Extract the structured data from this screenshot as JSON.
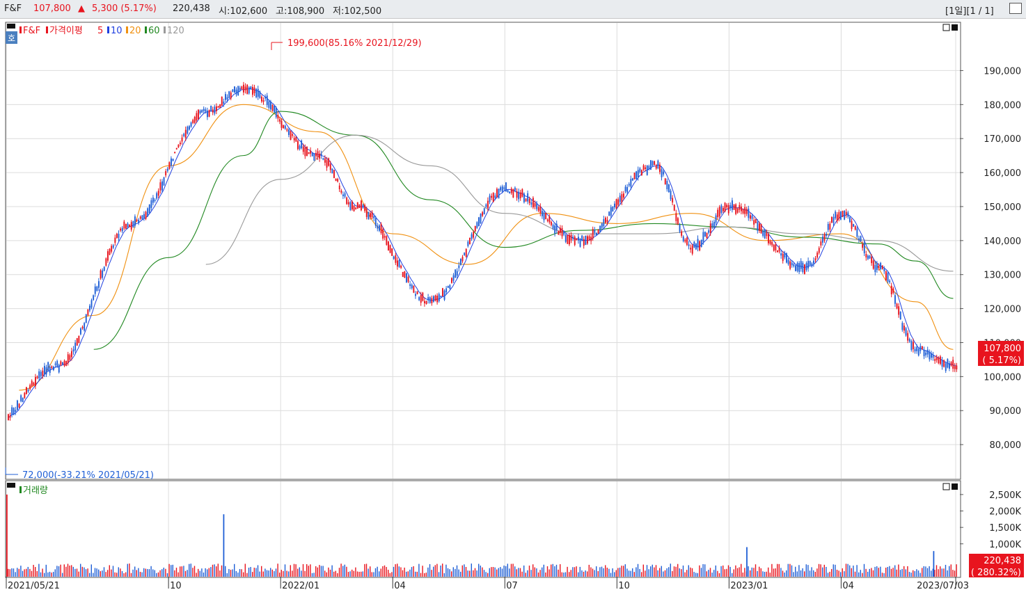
{
  "header": {
    "symbol": "F&F",
    "price": "107,800",
    "arrow": "▲",
    "change": "5,300 (5.17%)",
    "volume": "220,438",
    "open": "시:102,600",
    "high": "고:108,900",
    "low": "저:102,500",
    "period": "[1일][1 / 1]"
  },
  "legend": {
    "symbol": "F&F",
    "ma_title": "가격이평",
    "ma": [
      {
        "label": "5",
        "color": "#e8141e"
      },
      {
        "label": "10",
        "color": "#2040e0"
      },
      {
        "label": "20",
        "color": "#f09010"
      },
      {
        "label": "60",
        "color": "#208820"
      },
      {
        "label": "120",
        "color": "#999999"
      }
    ],
    "badge": "호",
    "volume_title": "거래량"
  },
  "annotations": {
    "high": "199,600(85.16% 2021/12/29)",
    "low": "72,000(-33.21% 2021/05/21)"
  },
  "price_tag": {
    "price": "107,800",
    "pct": "( 5.17%)"
  },
  "volume_tag": {
    "value": "220,438",
    "pct": "( 280.32%)"
  },
  "colors": {
    "up": "#e8141e",
    "down": "#1f5fd6",
    "ma5": "#e8141e",
    "ma10": "#2040e0",
    "ma20": "#f09010",
    "ma60": "#208820",
    "ma120": "#999999"
  },
  "chart_data": [
    {
      "type": "line",
      "title": "F&F",
      "price_axis_ticks": [
        "190,000",
        "180,000",
        "170,000",
        "160,000",
        "150,000",
        "140,000",
        "130,000",
        "120,000",
        "110,000",
        "100,000",
        "90,000",
        "80,000"
      ],
      "ylim": [
        70000,
        204000
      ],
      "x_ticks": [
        "2021/05/21",
        "10",
        "2022/01",
        "04",
        "07",
        "10",
        "2023/01",
        "04",
        "2023/07/03"
      ],
      "series": [
        {
          "name": "5",
          "x": [
            "2021/05",
            "2021/07",
            "2021/09",
            "2021/11",
            "2021/12",
            "2022/02",
            "2022/03",
            "2022/05",
            "2022/07",
            "2022/09",
            "2022/11",
            "2022/12",
            "2023/01",
            "2023/03",
            "2023/04",
            "2023/05",
            "2023/06",
            "2023/07"
          ],
          "values": [
            82000,
            103000,
            145000,
            178000,
            185000,
            165000,
            150000,
            122000,
            155000,
            140000,
            162000,
            138000,
            150000,
            132000,
            148000,
            132000,
            108000,
            103000
          ]
        },
        {
          "name": "20",
          "x": [
            "2021/06",
            "2021/08",
            "2021/10",
            "2021/12",
            "2022/02",
            "2022/04",
            "2022/06",
            "2022/08",
            "2022/10",
            "2022/12",
            "2023/02",
            "2023/04",
            "2023/06",
            "2023/07"
          ],
          "values": [
            96000,
            118000,
            162000,
            180000,
            172000,
            142000,
            133000,
            148000,
            145000,
            148000,
            140000,
            142000,
            122000,
            108000
          ]
        },
        {
          "name": "60",
          "x": [
            "2021/08",
            "2021/10",
            "2021/12",
            "2022/01",
            "2022/03",
            "2022/05",
            "2022/07",
            "2022/09",
            "2022/11",
            "2023/01",
            "2023/03",
            "2023/05",
            "2023/06",
            "2023/07"
          ],
          "values": [
            108000,
            135000,
            165000,
            178000,
            171000,
            152000,
            138000,
            143000,
            145000,
            144000,
            141000,
            139000,
            134000,
            123000
          ]
        },
        {
          "name": "120",
          "x": [
            "2021/11",
            "2022/01",
            "2022/03",
            "2022/05",
            "2022/07",
            "2022/09",
            "2022/11",
            "2023/01",
            "2023/03",
            "2023/05",
            "2023/07"
          ],
          "values": [
            133000,
            158000,
            171000,
            162000,
            148000,
            142000,
            142000,
            144000,
            142000,
            140000,
            131000
          ]
        }
      ],
      "ma_periods": [
        5,
        10,
        20,
        60,
        120
      ],
      "high": {
        "value": 199600,
        "date": "2021/12/29"
      },
      "low": {
        "value": 72000,
        "date": "2021/05/21"
      },
      "last": {
        "value": 107800,
        "change_pct": 5.17
      }
    },
    {
      "type": "bar",
      "title": "거래량",
      "volume_axis_ticks": [
        "2,500K",
        "2,000K",
        "1,500K",
        "1,000K"
      ],
      "ylim": [
        0,
        2900000
      ],
      "last": {
        "value": 220438,
        "pct": 280.32
      },
      "peaks": [
        {
          "x": "2021/05/21",
          "value": 2500000
        },
        {
          "x": "2021/11",
          "value": 1900000
        },
        {
          "x": "2023/01",
          "value": 900000
        },
        {
          "x": "2023/06",
          "value": 780000
        }
      ]
    }
  ]
}
